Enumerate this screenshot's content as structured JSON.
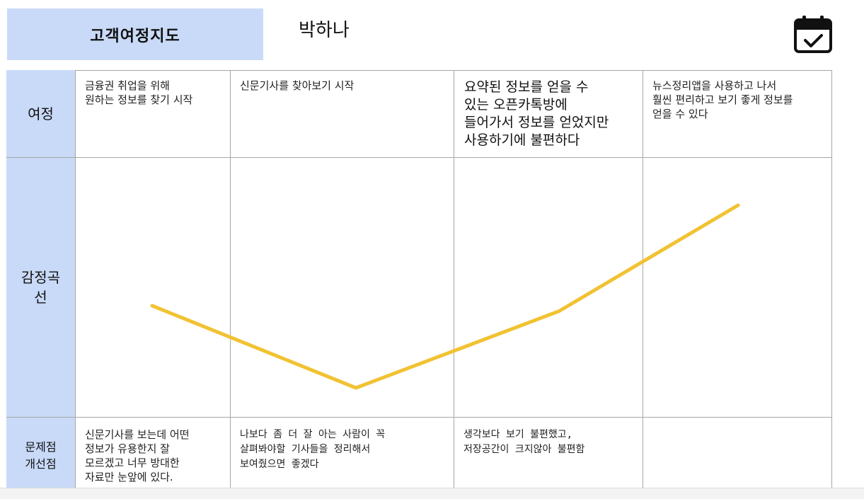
{
  "header": {
    "title": "고객여정지도",
    "persona": "박하나",
    "calendar_icon": "calendar-check-icon"
  },
  "rows": {
    "journey": "여정",
    "emotion": "감정곡\n선",
    "problem": "문제점\n개선점"
  },
  "journey": [
    "금융권 취업을 위해\n원하는 정보를 찾기 시작",
    "신문기사를 찾아보기 시작",
    "요약된 정보를 얻을 수\n있는 오픈카톡방에\n들어가서 정보를 얻었지만\n사용하기에 불편하다",
    "뉴스정리앱을 사용하고 나서\n훨씬 편리하고 보기 좋게 정보를\n얻을 수 있다"
  ],
  "problems": [
    "신문기사를 보는데 어떤\n정보가 유용한지 잘\n모르겠고 너무 방대한\n자료만 눈앞에 있다.",
    "나보다 좀 더 잘 아는 사람이 꼭\n살펴봐야할 기사들을 정리해서\n보여줬으면 좋겠다",
    "생각보다 보기 불편했고,\n저장공간이 크지않아 불편함",
    ""
  ],
  "chart_data": {
    "type": "line",
    "x": [
      1,
      2,
      3,
      4
    ],
    "series": [
      {
        "values": [
          0.45,
          0.0,
          0.42,
          1.0
        ]
      }
    ],
    "color": "#f1c232"
  }
}
